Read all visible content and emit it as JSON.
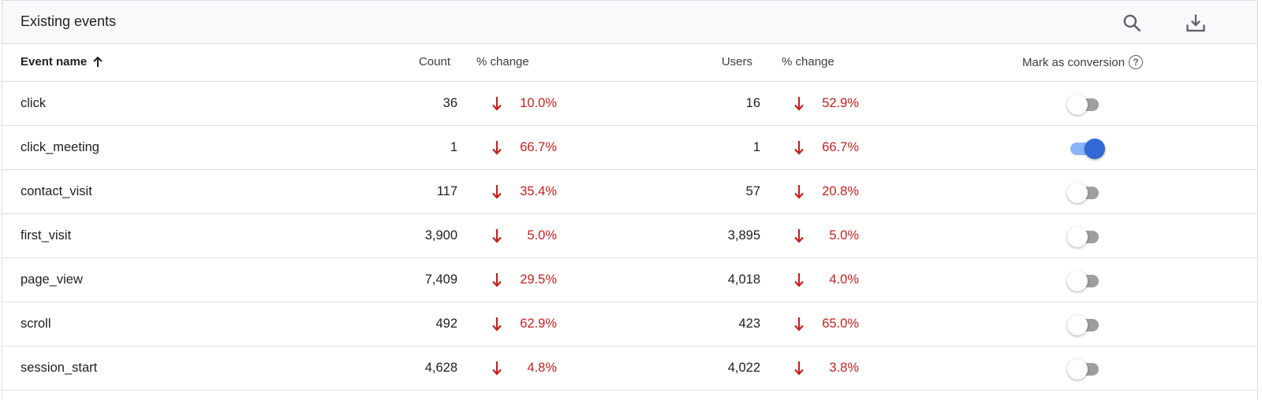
{
  "header": {
    "title": "Existing events",
    "search_icon": "search-icon",
    "download_icon": "download-icon"
  },
  "columns": {
    "event_name": "Event name",
    "count": "Count",
    "count_change": "% change",
    "users": "Users",
    "users_change": "% change",
    "mark_as_conversion": "Mark as conversion",
    "help": "?"
  },
  "colors": {
    "negative_change": "#c5221f",
    "toggle_on": "#3367d6",
    "toggle_off": "#9e9e9e"
  },
  "rows": [
    {
      "name": "click",
      "count": "36",
      "count_change": "10.0%",
      "users": "16",
      "users_change": "52.9%",
      "conversion": false
    },
    {
      "name": "click_meeting",
      "count": "1",
      "count_change": "66.7%",
      "users": "1",
      "users_change": "66.7%",
      "conversion": true
    },
    {
      "name": "contact_visit",
      "count": "117",
      "count_change": "35.4%",
      "users": "57",
      "users_change": "20.8%",
      "conversion": false
    },
    {
      "name": "first_visit",
      "count": "3,900",
      "count_change": "5.0%",
      "users": "3,895",
      "users_change": "5.0%",
      "conversion": false
    },
    {
      "name": "page_view",
      "count": "7,409",
      "count_change": "29.5%",
      "users": "4,018",
      "users_change": "4.0%",
      "conversion": false
    },
    {
      "name": "scroll",
      "count": "492",
      "count_change": "62.9%",
      "users": "423",
      "users_change": "65.0%",
      "conversion": false
    },
    {
      "name": "session_start",
      "count": "4,628",
      "count_change": "4.8%",
      "users": "4,022",
      "users_change": "3.8%",
      "conversion": false
    }
  ]
}
